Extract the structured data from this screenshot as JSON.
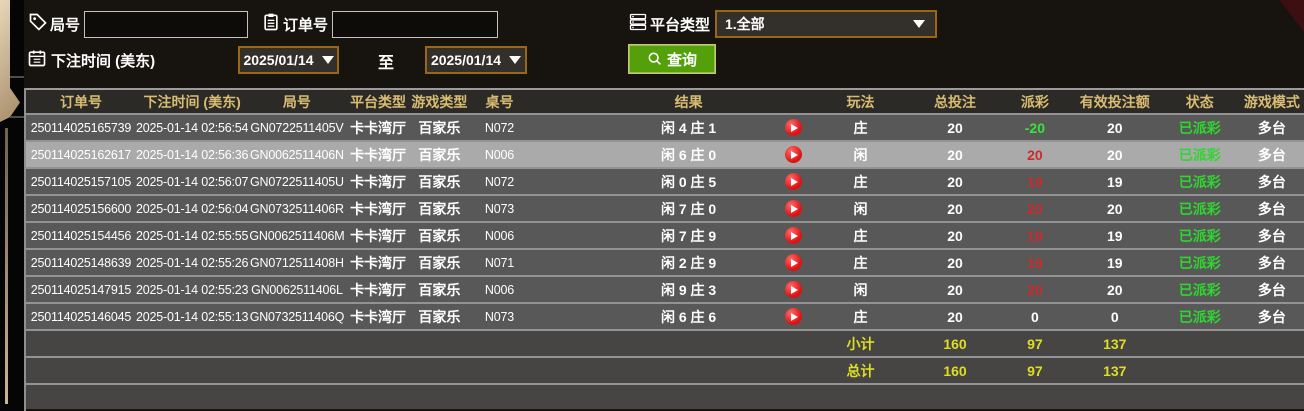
{
  "filters": {
    "round_no": {
      "label": "局号",
      "value": ""
    },
    "order_no": {
      "label": "订单号",
      "value": ""
    },
    "platform": {
      "label": "平台类型",
      "value": "1.全部"
    },
    "bet_time": {
      "label": "下注时间 (美东)",
      "from": "2025/01/14",
      "to_label": "至",
      "to": "2025/01/14"
    },
    "query_button": "查询"
  },
  "table": {
    "headers": {
      "order": "订单号",
      "time": "下注时间 (美东)",
      "round": "局号",
      "platform": "平台类型",
      "game": "游戏类型",
      "table_no": "桌号",
      "spacer": "",
      "result": "结果",
      "play_icon": "",
      "play": "玩法",
      "total_bet": "总投注",
      "payout": "派彩",
      "valid_bet": "有效投注额",
      "status": "状态",
      "mode": "游戏模式"
    },
    "rows": [
      {
        "order": "250114025165739",
        "time": "2025-01-14 02:56:54",
        "round": "GN0722511405V",
        "platform": "卡卡湾厅",
        "game": "百家乐",
        "table_no": "N072",
        "result": "闲 4 庄 1",
        "play": "庄",
        "total_bet": "20",
        "payout": "-20",
        "payout_color": "green",
        "valid_bet": "20",
        "status": "已派彩",
        "mode": "多台",
        "selected": false
      },
      {
        "order": "250114025162617",
        "time": "2025-01-14 02:56:36",
        "round": "GN0062511406N",
        "platform": "卡卡湾厅",
        "game": "百家乐",
        "table_no": "N006",
        "result": "闲 6 庄 0",
        "play": "闲",
        "total_bet": "20",
        "payout": "20",
        "payout_color": "red",
        "valid_bet": "20",
        "status": "已派彩",
        "mode": "多台",
        "selected": true
      },
      {
        "order": "250114025157105",
        "time": "2025-01-14 02:56:07",
        "round": "GN0722511405U",
        "platform": "卡卡湾厅",
        "game": "百家乐",
        "table_no": "N072",
        "result": "闲 0 庄 5",
        "play": "庄",
        "total_bet": "20",
        "payout": "19",
        "payout_color": "red",
        "valid_bet": "19",
        "status": "已派彩",
        "mode": "多台",
        "selected": false
      },
      {
        "order": "250114025156600",
        "time": "2025-01-14 02:56:04",
        "round": "GN0732511406R",
        "platform": "卡卡湾厅",
        "game": "百家乐",
        "table_no": "N073",
        "result": "闲 7 庄 0",
        "play": "闲",
        "total_bet": "20",
        "payout": "20",
        "payout_color": "red",
        "valid_bet": "20",
        "status": "已派彩",
        "mode": "多台",
        "selected": false
      },
      {
        "order": "250114025154456",
        "time": "2025-01-14 02:55:55",
        "round": "GN0062511406M",
        "platform": "卡卡湾厅",
        "game": "百家乐",
        "table_no": "N006",
        "result": "闲 7 庄 9",
        "play": "庄",
        "total_bet": "20",
        "payout": "19",
        "payout_color": "red",
        "valid_bet": "19",
        "status": "已派彩",
        "mode": "多台",
        "selected": false
      },
      {
        "order": "250114025148639",
        "time": "2025-01-14 02:55:26",
        "round": "GN0712511408H",
        "platform": "卡卡湾厅",
        "game": "百家乐",
        "table_no": "N071",
        "result": "闲 2 庄 9",
        "play": "庄",
        "total_bet": "20",
        "payout": "19",
        "payout_color": "red",
        "valid_bet": "19",
        "status": "已派彩",
        "mode": "多台",
        "selected": false
      },
      {
        "order": "250114025147915",
        "time": "2025-01-14 02:55:23",
        "round": "GN0062511406L",
        "platform": "卡卡湾厅",
        "game": "百家乐",
        "table_no": "N006",
        "result": "闲 9 庄 3",
        "play": "闲",
        "total_bet": "20",
        "payout": "20",
        "payout_color": "red",
        "valid_bet": "20",
        "status": "已派彩",
        "mode": "多台",
        "selected": false
      },
      {
        "order": "250114025146045",
        "time": "2025-01-14 02:55:13",
        "round": "GN0732511406Q",
        "platform": "卡卡湾厅",
        "game": "百家乐",
        "table_no": "N073",
        "result": "闲 6 庄 6",
        "play": "庄",
        "total_bet": "20",
        "payout": "0",
        "payout_color": "white",
        "valid_bet": "0",
        "status": "已派彩",
        "mode": "多台",
        "selected": false
      }
    ],
    "subtotal": {
      "label": "小计",
      "total_bet": "160",
      "payout": "97",
      "valid_bet": "137"
    },
    "grand_total": {
      "label": "总计",
      "total_bet": "160",
      "payout": "97",
      "valid_bet": "137"
    }
  },
  "colors": {
    "header_gold": "#d8bc72",
    "button_green": "#53a00b",
    "border_orange": "#996716",
    "win_red": "#ce2a2a",
    "loss_green": "#3ce23c",
    "status_green": "#2fd62f",
    "total_yellow": "#dede23",
    "row_gray": "#585858",
    "selected_gray": "#aaaaaa"
  }
}
